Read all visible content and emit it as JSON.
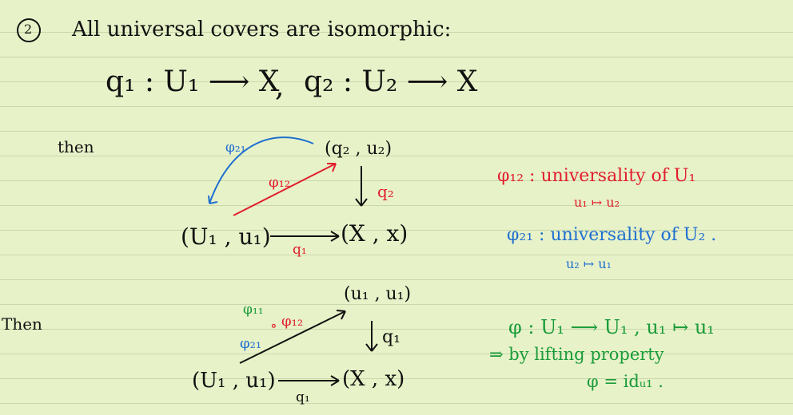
{
  "heading": {
    "number": "2",
    "text": "All universal covers are isomorphic:"
  },
  "maps_line": {
    "q1": "q₁ : U₁ ⟶ X",
    "sep": ",",
    "q2": "q₂ : U₂ ⟶ X"
  },
  "section1": {
    "label": "then",
    "diagram": {
      "top": "(q₂ , u₂)",
      "left": "(U₁ , u₁)",
      "right": "(X , x)",
      "phi21": "φ₂₁",
      "phi12": "φ₁₂",
      "q2": "q₂",
      "q1": "q₁"
    },
    "notes": [
      {
        "text": "φ₁₂ : universality of U₁",
        "color": "#e11d2d"
      },
      {
        "text": "u₁ ↦ u₂",
        "color": "#e11d2d"
      },
      {
        "text": "φ₂₁ : universality of U₂ .",
        "color": "#1f6fd0"
      },
      {
        "text": "u₂ ↦ u₁",
        "color": "#1f6fd0"
      }
    ]
  },
  "section2": {
    "label": "Then",
    "diagram": {
      "top": "(u₁ , u₁)",
      "left": "(U₁ , u₁)",
      "right": "(X , x)",
      "phi11": "φ₁₁",
      "compose_dot": "∘",
      "phi21": "φ₂₁",
      "phi12": "φ₁₂",
      "q1_vert": "q₁",
      "q1_bottom": "q₁"
    },
    "notes": [
      "φ : U₁ ⟶ U₁ , u₁ ↦ u₁",
      "⇒ by lifting property",
      "φ = idᵤ₁ ."
    ]
  },
  "colors": {
    "background": "#e7f2c8",
    "rule": "#c9d7aa",
    "ink": "#111111",
    "red": "#e11d2d",
    "blue": "#1f6fd0",
    "green": "#1a9b3a"
  }
}
